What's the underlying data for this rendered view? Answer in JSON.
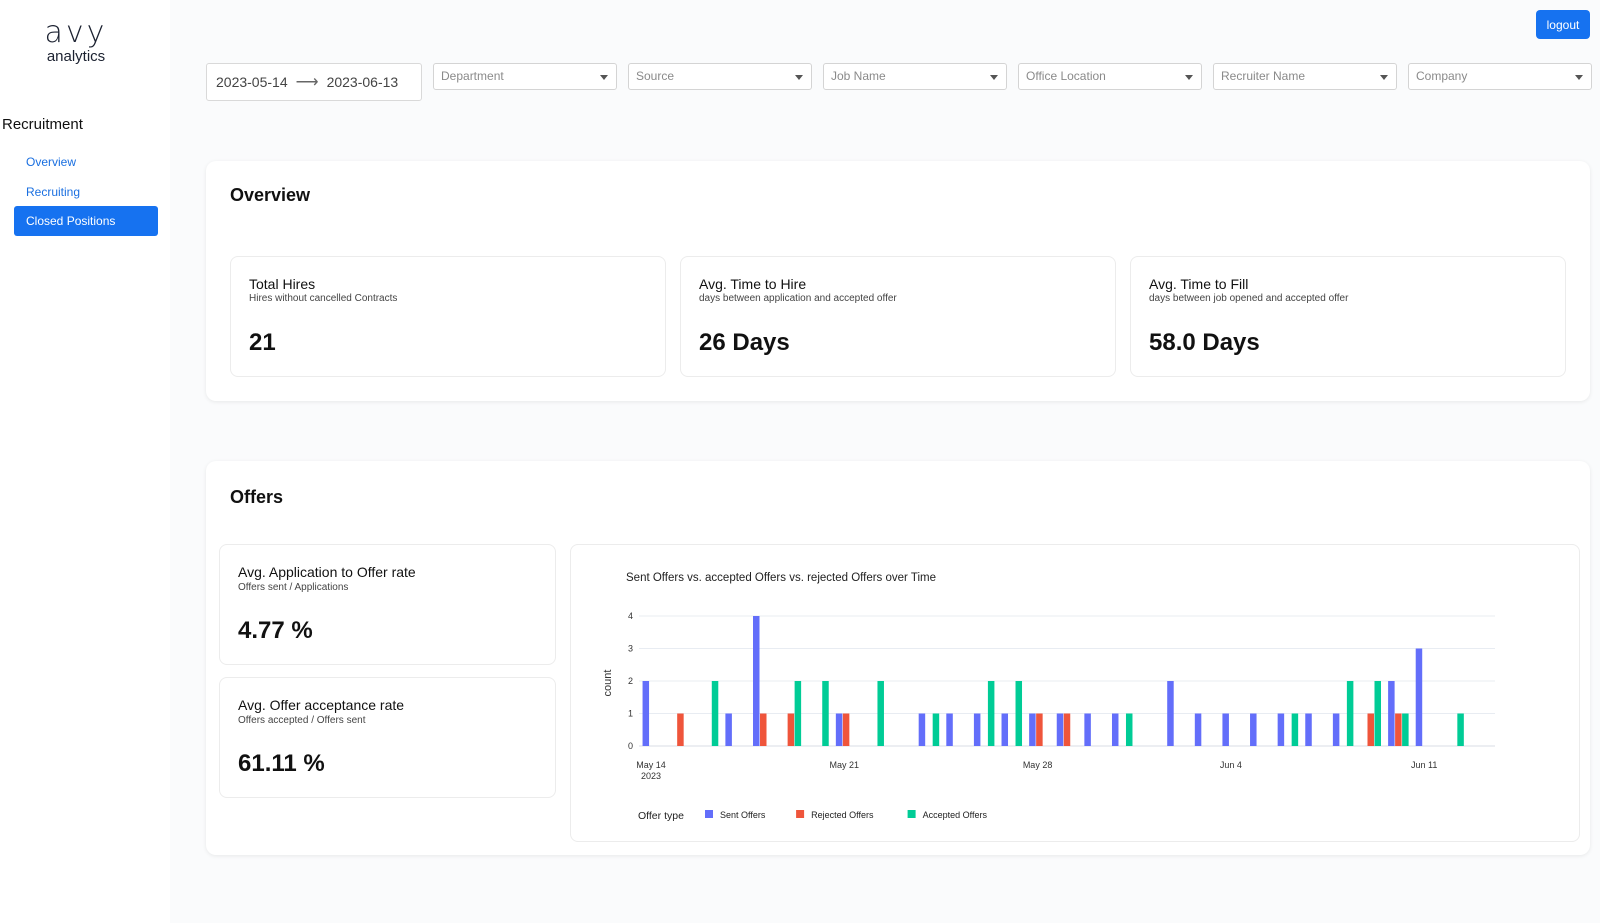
{
  "brand": {
    "mark": "avy",
    "sub": "analytics"
  },
  "sidebar": {
    "section": "Recruitment",
    "items": [
      {
        "label": "Overview",
        "active": false
      },
      {
        "label": "Recruiting",
        "active": false
      },
      {
        "label": "Closed Positions",
        "active": true
      }
    ]
  },
  "header": {
    "logout_label": "logout"
  },
  "filters": {
    "date_start": "2023-05-14",
    "date_end": "2023-06-13",
    "department": "Department",
    "source": "Source",
    "job_name": "Job Name",
    "office_location": "Office Location",
    "recruiter_name": "Recruiter Name",
    "company": "Company"
  },
  "overview": {
    "title": "Overview",
    "kpis": [
      {
        "title": "Total Hires",
        "sub": "Hires without cancelled Contracts",
        "value": "21"
      },
      {
        "title": "Avg. Time to Hire",
        "sub": "days between application and accepted offer",
        "value": "26 Days"
      },
      {
        "title": "Avg. Time to Fill",
        "sub": "days between job opened and accepted offer",
        "value": "58.0 Days"
      }
    ]
  },
  "offers": {
    "title": "Offers",
    "kpis": [
      {
        "title": "Avg. Application to Offer rate",
        "sub": "Offers sent / Applications",
        "value": "4.77 %"
      },
      {
        "title": "Avg. Offer acceptance rate",
        "sub": "Offers accepted / Offers sent",
        "value": "61.11 %"
      }
    ]
  },
  "colors": {
    "accent": "#1672f0",
    "sent": "#636efa",
    "rejected": "#ef553b",
    "accepted": "#00cc96"
  },
  "chart_data": {
    "type": "bar",
    "title": "Sent Offers vs. accepted Offers vs. rejected Offers over Time",
    "ylabel": "count",
    "xlabel": "",
    "ylim": [
      0,
      4
    ],
    "yticks": [
      0,
      1,
      2,
      3,
      4
    ],
    "x_start": "2023-05-14",
    "x_end": "2023-06-14",
    "xticks": [
      {
        "date": "2023-05-14",
        "label": "May 14",
        "label2": "2023"
      },
      {
        "date": "2023-05-21",
        "label": "May 21",
        "label2": ""
      },
      {
        "date": "2023-05-28",
        "label": "May 28",
        "label2": ""
      },
      {
        "date": "2023-06-04",
        "label": "Jun 4",
        "label2": ""
      },
      {
        "date": "2023-06-11",
        "label": "Jun 11",
        "label2": ""
      }
    ],
    "legend": {
      "title": "Offer type",
      "placement": "bottom-left"
    },
    "grid": true,
    "series": [
      {
        "name": "Sent Offers",
        "key": "sent",
        "points": [
          [
            "2023-05-14",
            2
          ],
          [
            "2023-05-17",
            1
          ],
          [
            "2023-05-18",
            4
          ],
          [
            "2023-05-21",
            1
          ],
          [
            "2023-05-24",
            1
          ],
          [
            "2023-05-25",
            1
          ],
          [
            "2023-05-26",
            1
          ],
          [
            "2023-05-27",
            1
          ],
          [
            "2023-05-28",
            1
          ],
          [
            "2023-05-29",
            1
          ],
          [
            "2023-05-30",
            1
          ],
          [
            "2023-05-31",
            1
          ],
          [
            "2023-06-02",
            2
          ],
          [
            "2023-06-03",
            1
          ],
          [
            "2023-06-04",
            1
          ],
          [
            "2023-06-05",
            1
          ],
          [
            "2023-06-06",
            1
          ],
          [
            "2023-06-07",
            1
          ],
          [
            "2023-06-08",
            1
          ],
          [
            "2023-06-10",
            2
          ],
          [
            "2023-06-11",
            3
          ]
        ]
      },
      {
        "name": "Rejected Offers",
        "key": "rejected",
        "points": [
          [
            "2023-05-15",
            1
          ],
          [
            "2023-05-18",
            1
          ],
          [
            "2023-05-19",
            1
          ],
          [
            "2023-05-21",
            1
          ],
          [
            "2023-05-28",
            1
          ],
          [
            "2023-05-29",
            1
          ],
          [
            "2023-06-09",
            1
          ],
          [
            "2023-06-10",
            1
          ]
        ]
      },
      {
        "name": "Accepted Offers",
        "key": "accepted",
        "points": [
          [
            "2023-05-16",
            2
          ],
          [
            "2023-05-19",
            2
          ],
          [
            "2023-05-20",
            2
          ],
          [
            "2023-05-22",
            2
          ],
          [
            "2023-05-24",
            1
          ],
          [
            "2023-05-26",
            2
          ],
          [
            "2023-05-27",
            2
          ],
          [
            "2023-05-31",
            1
          ],
          [
            "2023-06-06",
            1
          ],
          [
            "2023-06-08",
            2
          ],
          [
            "2023-06-09",
            2
          ],
          [
            "2023-06-10",
            1
          ],
          [
            "2023-06-12",
            1
          ]
        ]
      }
    ]
  }
}
